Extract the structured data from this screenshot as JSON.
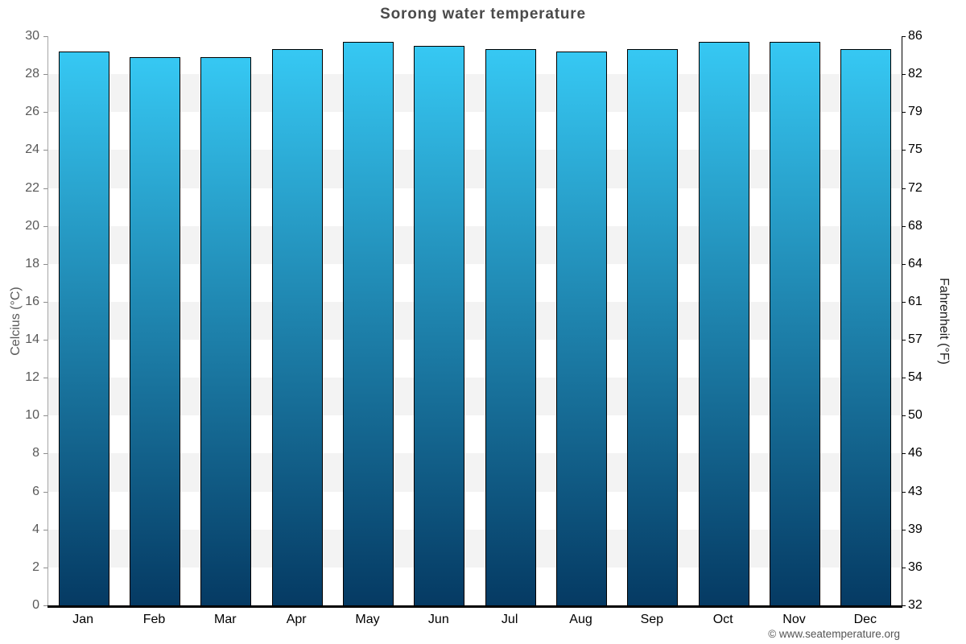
{
  "title": "Sorong water temperature",
  "chart_data": {
    "type": "bar",
    "title": "Sorong water temperature",
    "categories": [
      "Jan",
      "Feb",
      "Mar",
      "Apr",
      "May",
      "Jun",
      "Jul",
      "Aug",
      "Sep",
      "Oct",
      "Nov",
      "Dec"
    ],
    "values": [
      29.2,
      28.9,
      28.9,
      29.3,
      29.7,
      29.5,
      29.3,
      29.2,
      29.3,
      29.7,
      29.7,
      29.3
    ],
    "unit": "°C",
    "xlabel": "",
    "ylabel_left": "Celcius (°C)",
    "ylabel_right": "Fahrenheit (°F)",
    "ylim": [
      0,
      30
    ],
    "yticks_celsius": [
      30,
      28,
      26,
      24,
      22,
      20,
      18,
      16,
      14,
      12,
      10,
      8,
      6,
      4,
      2,
      0
    ],
    "yticks_fahrenheit": [
      86,
      82,
      79,
      75,
      72,
      68,
      64,
      61,
      57,
      54,
      50,
      46,
      43,
      39,
      36,
      32
    ],
    "legend": "none",
    "grid": "alternating-horizontal-bands",
    "colors": {
      "bar_gradient_top": "#36c8f3",
      "bar_gradient_bottom": "#053a63",
      "bar_border": "#000000",
      "band_gray": "#f3f3f3",
      "band_white": "#ffffff",
      "left_axis_line": "#a6a6a6",
      "right_axis_line": "#000000",
      "bottom_axis_line": "#000000",
      "title_color": "#4a4a4a",
      "left_tick_color": "#595959",
      "right_tick_color": "#000000"
    }
  },
  "footer": {
    "copyright": "© www.seatemperature.org"
  }
}
